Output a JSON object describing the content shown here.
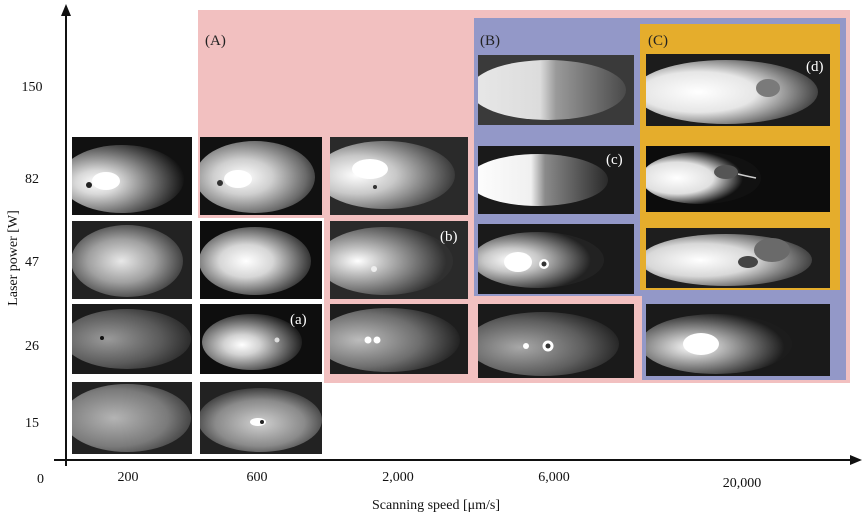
{
  "colors": {
    "region_A": "#f2c0c0",
    "region_B": "#9398c8",
    "region_C": "#e5ad2c",
    "axis": "#111111",
    "background": "#ffffff"
  },
  "axes": {
    "x_title": "Scanning speed [μm/s]",
    "y_title": "Laser power [W]",
    "origin_label": "0",
    "x_ticks": [
      "200",
      "600",
      "2,000",
      "6,000",
      "20,000"
    ],
    "y_ticks": [
      "150",
      "82",
      "47",
      "26",
      "15"
    ]
  },
  "regions": {
    "A": {
      "label": "(A)"
    },
    "B": {
      "label": "(B)"
    },
    "C": {
      "label": "(C)"
    }
  },
  "cell_labels": {
    "a": "(a)",
    "b": "(b)",
    "c": "(c)",
    "d": "(d)"
  }
}
